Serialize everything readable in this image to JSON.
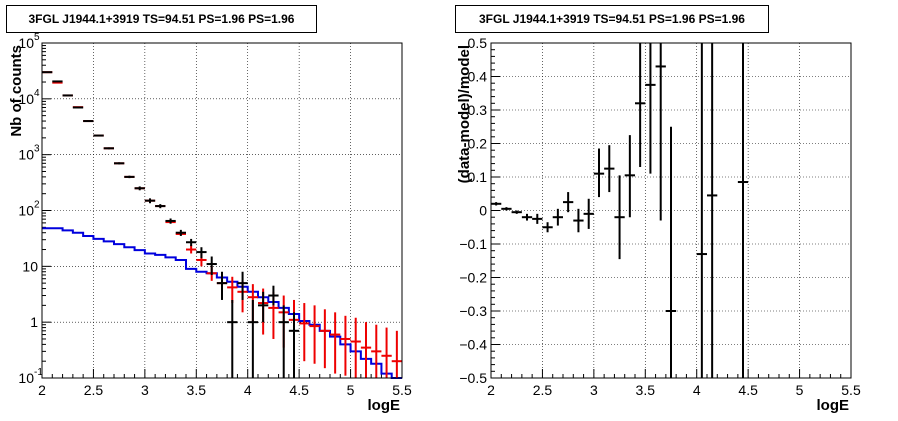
{
  "chart_data": [
    {
      "type": "step",
      "title": "3FGL J1944.1+3919 TS=94.51 PS=1.96 PS=1.96",
      "xlabel": "logE",
      "ylabel": "Nb of counts",
      "xlim": [
        2,
        5.5
      ],
      "ylim": [
        0.1,
        100000
      ],
      "yscale": "log",
      "grid": true,
      "x_ticks": [
        "2",
        "2.5",
        "3",
        "3.5",
        "4",
        "4.5",
        "5",
        "5.5"
      ],
      "y_ticks": [
        "10^-1",
        "1",
        "10",
        "10^2",
        "10^3",
        "10^4",
        "10^5"
      ],
      "series": [
        {
          "color": "#000000",
          "kind": "data_points",
          "x": [
            2.05,
            2.15,
            2.25,
            2.35,
            2.45,
            2.55,
            2.65,
            2.75,
            2.85,
            2.95,
            3.05,
            3.15,
            3.25,
            3.35,
            3.45,
            3.55,
            3.65,
            3.75,
            3.85,
            3.95,
            4.05,
            4.15,
            4.25,
            4.35,
            4.45
          ],
          "y": [
            30000,
            20500,
            11500,
            7000,
            4000,
            2200,
            1300,
            700,
            400,
            250,
            150,
            120,
            65,
            40,
            27,
            18,
            11,
            5,
            1,
            5,
            1,
            2,
            3,
            1,
            0.7
          ],
          "ylow": [
            29500,
            20000,
            11200,
            6800,
            3900,
            2150,
            1250,
            670,
            380,
            230,
            135,
            110,
            58,
            35,
            23,
            14,
            7,
            2.5,
            0.1,
            2.5,
            0.1,
            1,
            2,
            0.1,
            0.1
          ],
          "yhigh": [
            30500,
            21000,
            11800,
            7200,
            4100,
            2250,
            1350,
            730,
            420,
            270,
            165,
            130,
            72,
            45,
            31,
            22,
            15,
            8,
            2.5,
            8,
            2.5,
            3.5,
            4.5,
            2,
            1.5
          ]
        },
        {
          "color": "#ee0000",
          "kind": "model_points",
          "x": [
            2.05,
            2.15,
            2.25,
            2.35,
            2.45,
            2.55,
            2.65,
            2.75,
            2.85,
            2.95,
            3.05,
            3.15,
            3.25,
            3.35,
            3.45,
            3.55,
            3.65,
            3.75,
            3.85,
            3.95,
            4.05,
            4.15,
            4.25,
            4.35,
            4.45,
            4.55,
            4.65,
            4.75,
            4.85,
            4.95,
            5.05,
            5.15,
            5.25,
            5.35,
            5.45
          ],
          "y": [
            30000,
            19500,
            11500,
            7100,
            4000,
            2200,
            1300,
            700,
            400,
            250,
            150,
            120,
            62,
            38,
            20,
            13,
            7.5,
            5,
            4.2,
            3.5,
            2.8,
            2.2,
            1.8,
            1.5,
            1.1,
            0.95,
            0.85,
            0.7,
            0.6,
            0.5,
            0.45,
            0.35,
            0.3,
            0.25,
            0.2
          ],
          "ylow": [
            30000,
            19500,
            11500,
            7100,
            4000,
            2200,
            1300,
            700,
            400,
            250,
            150,
            120,
            60,
            36,
            17,
            10,
            5.5,
            3,
            2.2,
            1.5,
            1,
            0.6,
            0.5,
            0.35,
            0.25,
            0.2,
            0.18,
            0.15,
            0.12,
            0.11,
            0.1,
            0.1,
            0.1,
            0.1,
            0.1
          ],
          "yhigh": [
            30000,
            19500,
            11500,
            7100,
            4000,
            2200,
            1300,
            700,
            400,
            250,
            150,
            120,
            68,
            42,
            24,
            17,
            10,
            7.5,
            6.5,
            5.5,
            4.8,
            4,
            3.5,
            3,
            2.5,
            2.2,
            2,
            1.7,
            1.5,
            1.3,
            1.2,
            1,
            0.9,
            0.8,
            0.7
          ]
        },
        {
          "color": "#0000dd",
          "kind": "histogram",
          "x": [
            2.05,
            2.15,
            2.25,
            2.35,
            2.45,
            2.55,
            2.65,
            2.75,
            2.85,
            2.95,
            3.05,
            3.15,
            3.25,
            3.35,
            3.45,
            3.55,
            3.65,
            3.75,
            3.85,
            3.95,
            4.05,
            4.15,
            4.25,
            4.35,
            4.45,
            4.55,
            4.65,
            4.75,
            4.85,
            4.95,
            5.05,
            5.15,
            5.25,
            5.35,
            5.45
          ],
          "y": [
            48,
            48,
            44,
            40,
            35,
            31,
            28,
            25,
            22,
            19.5,
            17,
            16,
            14.5,
            13,
            9,
            8,
            7.5,
            6.3,
            5.3,
            4.3,
            3.5,
            2.8,
            2.3,
            1.8,
            1.4,
            1.05,
            0.9,
            0.7,
            0.55,
            0.4,
            0.3,
            0.22,
            0.18,
            0.12,
            0.1
          ]
        }
      ]
    },
    {
      "type": "scatter",
      "title": "3FGL J1944.1+3919 TS=94.51 PS=1.96 PS=1.96",
      "xlabel": "logE",
      "ylabel": "(data-model)/model",
      "xlim": [
        2,
        5.5
      ],
      "ylim": [
        -0.5,
        0.5
      ],
      "grid": true,
      "x_ticks": [
        "2",
        "2.5",
        "3",
        "3.5",
        "4",
        "4.5",
        "5",
        "5.5"
      ],
      "y_ticks": [
        "-0.5",
        "-0.4",
        "-0.3",
        "-0.2",
        "-0.1",
        "0",
        "0.1",
        "0.2",
        "0.3",
        "0.4",
        "0.5"
      ],
      "series": [
        {
          "color": "#000000",
          "x": [
            2.05,
            2.15,
            2.25,
            2.35,
            2.45,
            2.55,
            2.65,
            2.75,
            2.85,
            2.95,
            3.05,
            3.15,
            3.25,
            3.35,
            3.45,
            3.55,
            3.65,
            3.75,
            4.05,
            4.15,
            4.45
          ],
          "y": [
            0.02,
            0.005,
            -0.005,
            -0.02,
            -0.025,
            -0.05,
            -0.02,
            0.025,
            -0.03,
            -0.01,
            0.11,
            0.125,
            -0.02,
            0.105,
            0.32,
            0.375,
            0.43,
            -0.3,
            -0.13,
            0.045,
            0.085
          ],
          "ylow": [
            0.015,
            0.0,
            -0.01,
            -0.03,
            -0.04,
            -0.065,
            -0.045,
            -0.005,
            -0.065,
            -0.055,
            0.04,
            0.055,
            -0.145,
            -0.02,
            0.13,
            0.11,
            -0.03,
            -0.5,
            -0.5,
            -0.5,
            -0.5
          ],
          "yhigh": [
            0.025,
            0.01,
            0.0,
            -0.01,
            -0.01,
            -0.035,
            0.005,
            0.055,
            0.005,
            0.035,
            0.185,
            0.195,
            0.105,
            0.225,
            0.5,
            0.5,
            0.5,
            0.25,
            0.5,
            0.5,
            0.5
          ]
        }
      ]
    }
  ]
}
